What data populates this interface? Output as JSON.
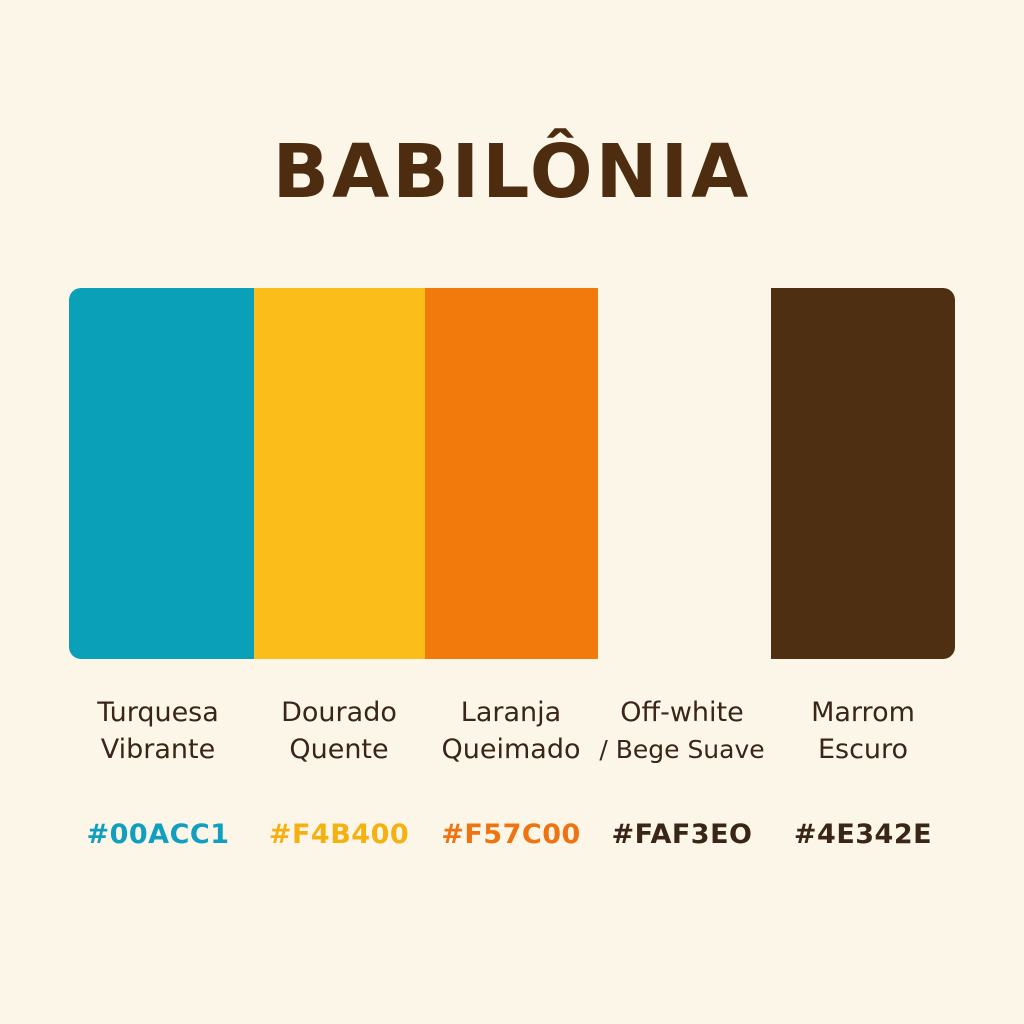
{
  "title": "BABILÔNIA",
  "palette": [
    {
      "name_line1": "Turquesa",
      "name_line2": "Vibrante",
      "hex": "#00ACC1",
      "color": "#0aa0b8",
      "label_color": "#119fc0"
    },
    {
      "name_line1": "Dourado",
      "name_line2": "Quente",
      "hex": "#F4B400",
      "color": "#fbbd1a",
      "label_color": "#f5b111"
    },
    {
      "name_line1": "Laranja",
      "name_line2": "Queimado",
      "hex": "#F57C00",
      "color": "#f27a0c",
      "label_color": "#ef7411"
    },
    {
      "name_line1": "Off-white",
      "name_line2": "/ Bege Suave",
      "hex": "#FAF3EO",
      "color": "#fcf6e9",
      "label_color": "#3a2616"
    },
    {
      "name_line1": "Marrom",
      "name_line2": "Escuro",
      "hex": "#4E342E",
      "color": "#4f2f12",
      "label_color": "#3a2616"
    }
  ]
}
